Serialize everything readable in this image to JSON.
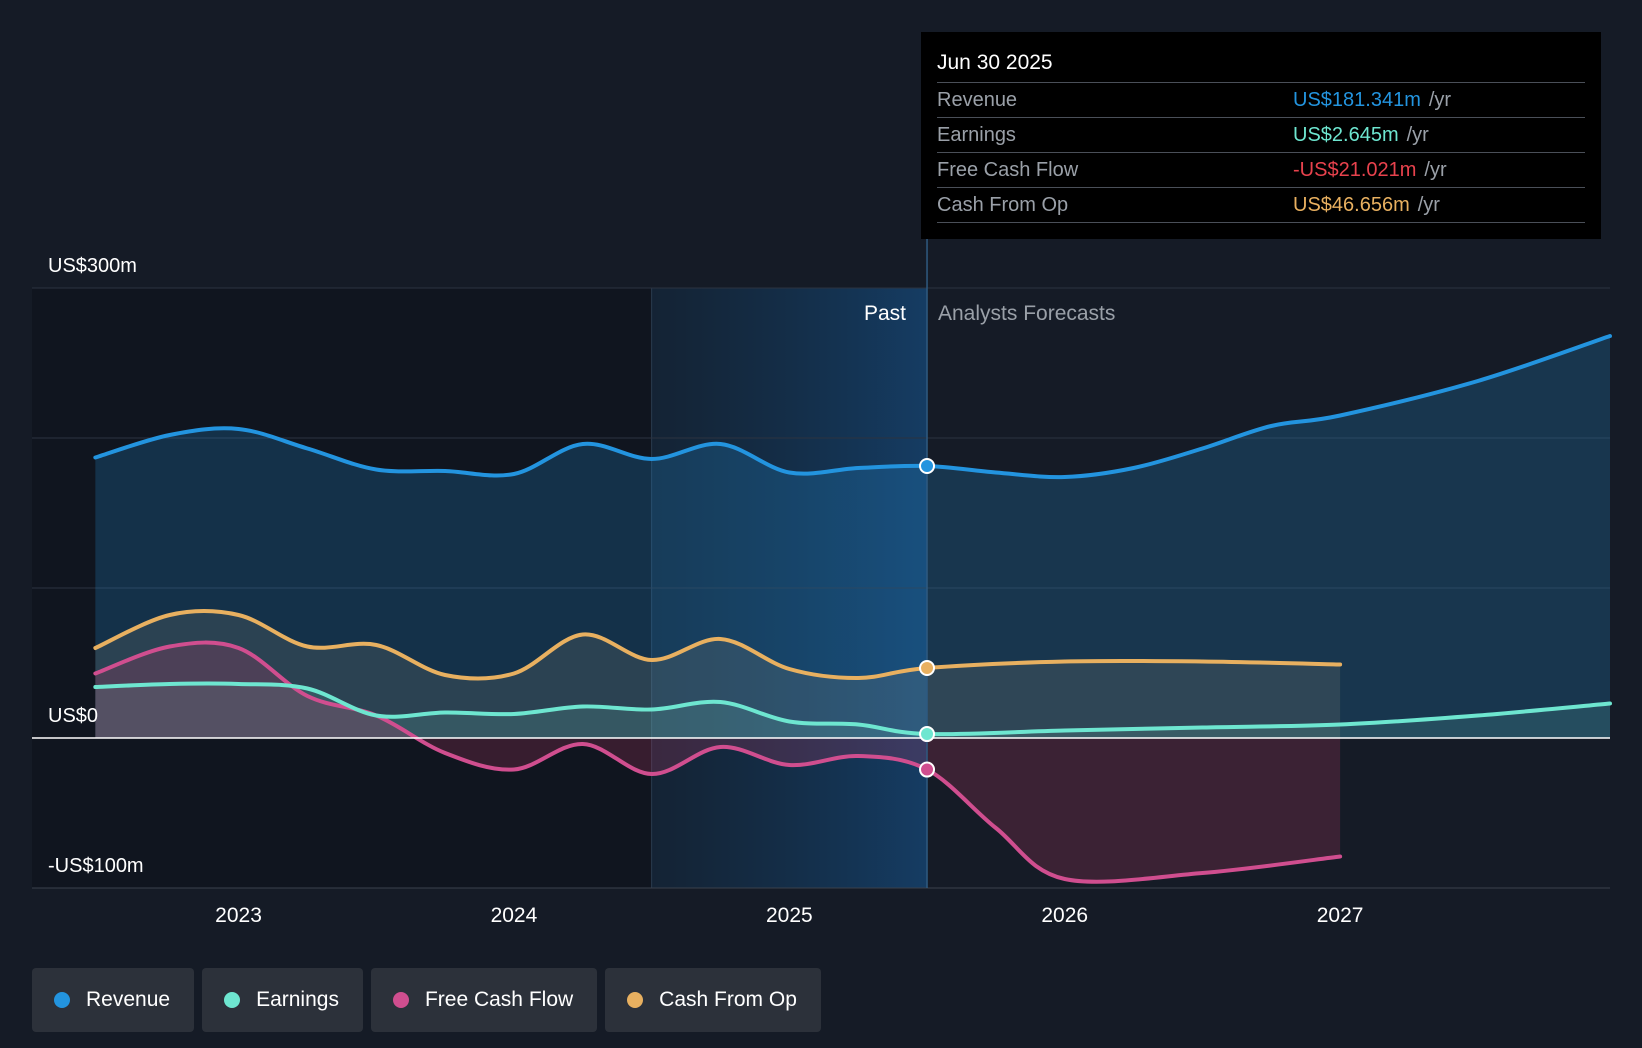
{
  "chart_data": {
    "type": "area",
    "y_labels": {
      "top": "US$300m",
      "zero": "US$0",
      "bottom": "-US$100m"
    },
    "ylim": [
      -100,
      300
    ],
    "xlim": [
      2022.25,
      2027.98
    ],
    "x_ticks": [
      2023,
      2024,
      2025,
      2026,
      2027
    ],
    "x_tick_labels": [
      "2023",
      "2024",
      "2025",
      "2026",
      "2027"
    ],
    "past_label": "Past",
    "forecast_label": "Analysts Forecasts",
    "divider_x": 2025.5,
    "highlight_start_x": 2024.5,
    "series": [
      {
        "name": "Revenue",
        "color": "#2394df",
        "values": [
          [
            2022.48,
            187
          ],
          [
            2022.75,
            202
          ],
          [
            2023.0,
            206
          ],
          [
            2023.25,
            193
          ],
          [
            2023.5,
            179
          ],
          [
            2023.75,
            178
          ],
          [
            2024.0,
            176
          ],
          [
            2024.25,
            196
          ],
          [
            2024.5,
            186
          ],
          [
            2024.75,
            196
          ],
          [
            2025.0,
            177
          ],
          [
            2025.25,
            180
          ],
          [
            2025.5,
            181.341
          ],
          [
            2025.75,
            177
          ],
          [
            2026.0,
            174
          ],
          [
            2026.25,
            180
          ],
          [
            2026.5,
            193
          ],
          [
            2026.75,
            208
          ],
          [
            2027.0,
            215
          ],
          [
            2027.5,
            238
          ],
          [
            2027.98,
            268
          ]
        ]
      },
      {
        "name": "Earnings",
        "color": "#6ee6d0",
        "values": [
          [
            2022.48,
            34
          ],
          [
            2022.75,
            36
          ],
          [
            2023.0,
            36
          ],
          [
            2023.25,
            33
          ],
          [
            2023.5,
            15
          ],
          [
            2023.75,
            17
          ],
          [
            2024.0,
            16
          ],
          [
            2024.25,
            21
          ],
          [
            2024.5,
            19
          ],
          [
            2024.75,
            24
          ],
          [
            2025.0,
            11
          ],
          [
            2025.25,
            9
          ],
          [
            2025.5,
            2.645
          ],
          [
            2026.0,
            5
          ],
          [
            2026.5,
            7
          ],
          [
            2027.0,
            9
          ],
          [
            2027.5,
            15
          ],
          [
            2027.98,
            23
          ]
        ]
      },
      {
        "name": "Free Cash Flow",
        "color": "#d04e8f",
        "values": [
          [
            2022.48,
            43
          ],
          [
            2022.75,
            61
          ],
          [
            2023.0,
            60
          ],
          [
            2023.25,
            28
          ],
          [
            2023.5,
            15
          ],
          [
            2023.75,
            -10
          ],
          [
            2024.0,
            -21
          ],
          [
            2024.25,
            -4
          ],
          [
            2024.5,
            -24
          ],
          [
            2024.75,
            -6
          ],
          [
            2025.0,
            -18
          ],
          [
            2025.25,
            -12
          ],
          [
            2025.5,
            -21.021
          ],
          [
            2025.75,
            -60
          ],
          [
            2026.0,
            -94
          ],
          [
            2026.5,
            -90
          ],
          [
            2027.0,
            -79
          ]
        ]
      },
      {
        "name": "Cash From Op",
        "color": "#e8b060",
        "values": [
          [
            2022.48,
            60
          ],
          [
            2022.75,
            82
          ],
          [
            2023.0,
            82
          ],
          [
            2023.25,
            61
          ],
          [
            2023.5,
            62
          ],
          [
            2023.75,
            42
          ],
          [
            2024.0,
            43
          ],
          [
            2024.25,
            69
          ],
          [
            2024.5,
            52
          ],
          [
            2024.75,
            66
          ],
          [
            2025.0,
            46
          ],
          [
            2025.25,
            40
          ],
          [
            2025.5,
            46.656
          ],
          [
            2026.0,
            51
          ],
          [
            2026.5,
            51
          ],
          [
            2027.0,
            49
          ]
        ]
      }
    ]
  },
  "tooltip": {
    "date": "Jun 30 2025",
    "unit": "/yr",
    "rows": [
      {
        "label": "Revenue",
        "value": "US$181.341m",
        "color": "#2394df"
      },
      {
        "label": "Earnings",
        "value": "US$2.645m",
        "color": "#6ee6d0"
      },
      {
        "label": "Free Cash Flow",
        "value": "-US$21.021m",
        "color": "#e8424d"
      },
      {
        "label": "Cash From Op",
        "value": "US$46.656m",
        "color": "#e8b060"
      }
    ]
  },
  "legend": {
    "items": [
      {
        "label": "Revenue",
        "color": "#2394df"
      },
      {
        "label": "Earnings",
        "color": "#6ee6d0"
      },
      {
        "label": "Free Cash Flow",
        "color": "#d04e8f"
      },
      {
        "label": "Cash From Op",
        "color": "#e8b060"
      }
    ]
  }
}
